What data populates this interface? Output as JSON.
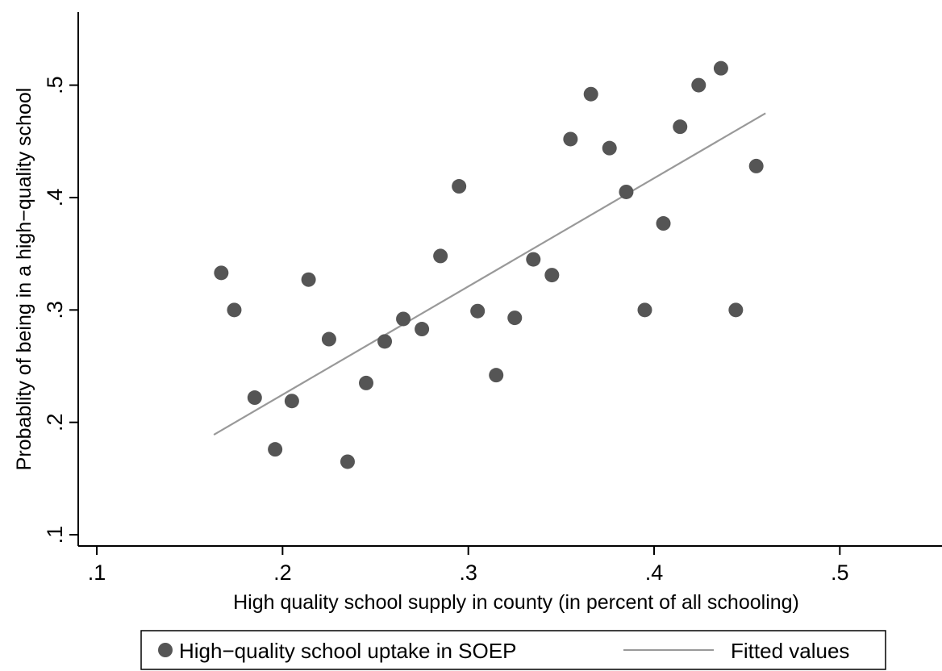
{
  "chart_data": {
    "type": "scatter",
    "title": "",
    "xlabel": "High quality school supply in county (in percent of all schooling)",
    "ylabel": "Probablity of being in a high−quality school",
    "xlim": [
      0.09,
      0.555
    ],
    "ylim": [
      0.09,
      0.565
    ],
    "x_ticks": [
      0.1,
      0.2,
      0.3,
      0.4,
      0.5
    ],
    "x_tick_labels": [
      ".1",
      ".2",
      ".3",
      ".4",
      ".5"
    ],
    "y_ticks": [
      0.1,
      0.2,
      0.3,
      0.4,
      0.5
    ],
    "y_tick_labels": [
      ".1",
      ".2",
      ".3",
      ".4",
      ".5"
    ],
    "grid": false,
    "legend_position": "bottom",
    "series": [
      {
        "name": "High−quality school uptake in SOEP",
        "kind": "scatter",
        "color": "#555555",
        "points": [
          {
            "x": 0.167,
            "y": 0.333
          },
          {
            "x": 0.174,
            "y": 0.3
          },
          {
            "x": 0.185,
            "y": 0.222
          },
          {
            "x": 0.196,
            "y": 0.176
          },
          {
            "x": 0.205,
            "y": 0.219
          },
          {
            "x": 0.214,
            "y": 0.327
          },
          {
            "x": 0.225,
            "y": 0.274
          },
          {
            "x": 0.235,
            "y": 0.165
          },
          {
            "x": 0.245,
            "y": 0.235
          },
          {
            "x": 0.255,
            "y": 0.272
          },
          {
            "x": 0.265,
            "y": 0.292
          },
          {
            "x": 0.275,
            "y": 0.283
          },
          {
            "x": 0.285,
            "y": 0.348
          },
          {
            "x": 0.295,
            "y": 0.41
          },
          {
            "x": 0.305,
            "y": 0.299
          },
          {
            "x": 0.315,
            "y": 0.242
          },
          {
            "x": 0.325,
            "y": 0.293
          },
          {
            "x": 0.335,
            "y": 0.345
          },
          {
            "x": 0.345,
            "y": 0.331
          },
          {
            "x": 0.355,
            "y": 0.452
          },
          {
            "x": 0.366,
            "y": 0.492
          },
          {
            "x": 0.376,
            "y": 0.444
          },
          {
            "x": 0.385,
            "y": 0.405
          },
          {
            "x": 0.395,
            "y": 0.3
          },
          {
            "x": 0.405,
            "y": 0.377
          },
          {
            "x": 0.414,
            "y": 0.463
          },
          {
            "x": 0.424,
            "y": 0.5
          },
          {
            "x": 0.436,
            "y": 0.515
          },
          {
            "x": 0.444,
            "y": 0.3
          },
          {
            "x": 0.455,
            "y": 0.428
          }
        ]
      },
      {
        "name": "Fitted values",
        "kind": "line",
        "color": "#999999",
        "points": [
          {
            "x": 0.163,
            "y": 0.189
          },
          {
            "x": 0.46,
            "y": 0.475
          }
        ]
      }
    ]
  }
}
